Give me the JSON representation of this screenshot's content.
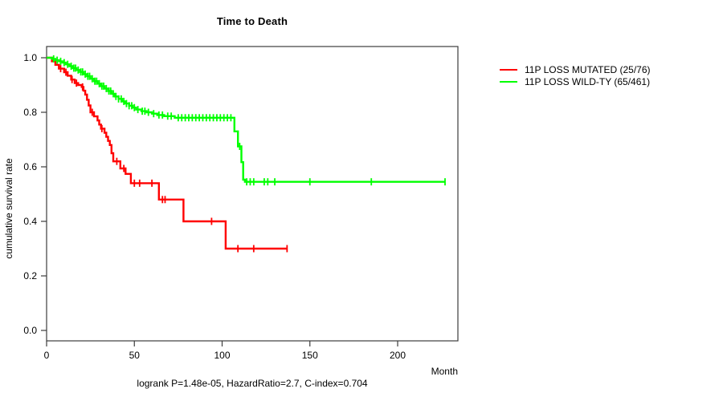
{
  "chart_data": {
    "type": "line",
    "subtype": "kaplan-meier-step",
    "title": "Time to Death",
    "xlabel": "Month",
    "ylabel": "cumulative survival rate",
    "footer": "logrank P=1.48e-05, HazardRatio=2.7, C-index=0.704",
    "xlim": [
      0,
      234
    ],
    "ylim": [
      0,
      1.0
    ],
    "x_ticks": [
      0,
      50,
      100,
      150,
      200
    ],
    "y_ticks": [
      0.0,
      0.2,
      0.4,
      0.6,
      0.8,
      1.0
    ],
    "grid": "off",
    "legend_position": "right-outside",
    "series": [
      {
        "key": "mutated",
        "name": "11P LOSS MUTATED (25/76)",
        "color": "#ff0000",
        "end_month": 137,
        "steps": [
          [
            0,
            1.0
          ],
          [
            3,
            0.987
          ],
          [
            5,
            0.974
          ],
          [
            7,
            0.96
          ],
          [
            10,
            0.947
          ],
          [
            12,
            0.934
          ],
          [
            14,
            0.92
          ],
          [
            16,
            0.907
          ],
          [
            18,
            0.9
          ],
          [
            20,
            0.893
          ],
          [
            21,
            0.879
          ],
          [
            22,
            0.865
          ],
          [
            23,
            0.846
          ],
          [
            24,
            0.825
          ],
          [
            25,
            0.8
          ],
          [
            27,
            0.785
          ],
          [
            29,
            0.77
          ],
          [
            30,
            0.755
          ],
          [
            31,
            0.74
          ],
          [
            33,
            0.725
          ],
          [
            34,
            0.71
          ],
          [
            35,
            0.695
          ],
          [
            36,
            0.68
          ],
          [
            37,
            0.65
          ],
          [
            38,
            0.62
          ],
          [
            42,
            0.594
          ],
          [
            45,
            0.574
          ],
          [
            48,
            0.54
          ],
          [
            64,
            0.48
          ],
          [
            78,
            0.4
          ],
          [
            102,
            0.3
          ]
        ],
        "censor_months": [
          8,
          11,
          14.5,
          17,
          20.5,
          26,
          31.5,
          40,
          44,
          50,
          53,
          60,
          66,
          67.5,
          94,
          109,
          118,
          137
        ]
      },
      {
        "key": "wildtype",
        "name": "11P LOSS WILD-TY (65/461)",
        "color": "#00ff00",
        "end_month": 227,
        "steps": [
          [
            0,
            1.0
          ],
          [
            3,
            0.996
          ],
          [
            5,
            0.991
          ],
          [
            7,
            0.987
          ],
          [
            9,
            0.982
          ],
          [
            11,
            0.976
          ],
          [
            13,
            0.969
          ],
          [
            15,
            0.962
          ],
          [
            17,
            0.955
          ],
          [
            19,
            0.948
          ],
          [
            21,
            0.94
          ],
          [
            23,
            0.932
          ],
          [
            25,
            0.923
          ],
          [
            27,
            0.914
          ],
          [
            29,
            0.905
          ],
          [
            31,
            0.896
          ],
          [
            33,
            0.887
          ],
          [
            35,
            0.878
          ],
          [
            37,
            0.868
          ],
          [
            39,
            0.858
          ],
          [
            41,
            0.849
          ],
          [
            43,
            0.84
          ],
          [
            45,
            0.832
          ],
          [
            47,
            0.824
          ],
          [
            49,
            0.817
          ],
          [
            51,
            0.81
          ],
          [
            54,
            0.804
          ],
          [
            57,
            0.8
          ],
          [
            60,
            0.795
          ],
          [
            63,
            0.79
          ],
          [
            67,
            0.786
          ],
          [
            73,
            0.78
          ],
          [
            107,
            0.73
          ],
          [
            109,
            0.675
          ],
          [
            111,
            0.617
          ],
          [
            112,
            0.553
          ],
          [
            113,
            0.545
          ]
        ],
        "censor_months": [
          4,
          6,
          8,
          10,
          12,
          14,
          15.5,
          16.5,
          18,
          19.5,
          20.5,
          22,
          23.5,
          24.5,
          26,
          27.5,
          28.5,
          30,
          31.5,
          32.5,
          34,
          35.5,
          36.5,
          38,
          39.5,
          41,
          42.5,
          44,
          45.5,
          47,
          48.5,
          50,
          52,
          54.5,
          56,
          58,
          61,
          64,
          66,
          69,
          71,
          75,
          77,
          79,
          81,
          83,
          85,
          87,
          89,
          91,
          93,
          95,
          97,
          99,
          101,
          103,
          105,
          110,
          114,
          116,
          118,
          124,
          126,
          130,
          150,
          185,
          227
        ]
      }
    ]
  }
}
